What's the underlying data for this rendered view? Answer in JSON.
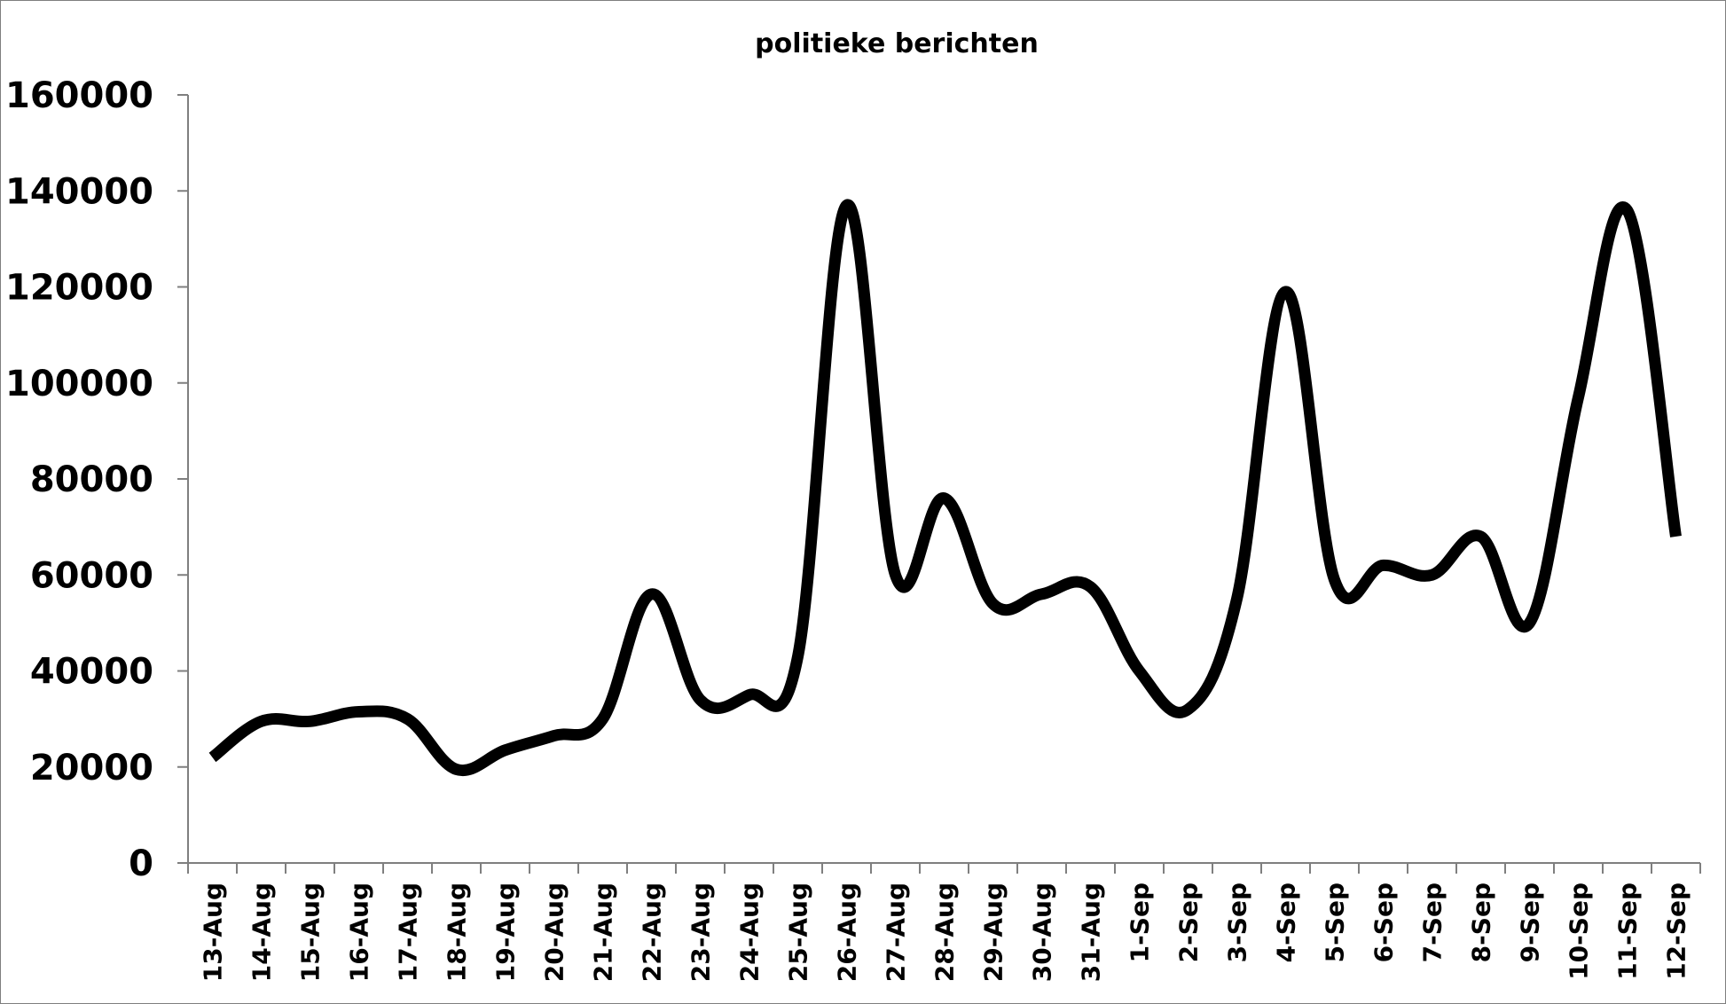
{
  "chart_data": {
    "type": "line",
    "title": "politieke berichten",
    "xlabel": "",
    "ylabel": "",
    "ylim": [
      0,
      160000
    ],
    "yticks": [
      "0",
      "20000",
      "40000",
      "60000",
      "80000",
      "100000",
      "120000",
      "140000",
      "160000"
    ],
    "categories": [
      "13-Aug",
      "14-Aug",
      "15-Aug",
      "16-Aug",
      "17-Aug",
      "18-Aug",
      "19-Aug",
      "20-Aug",
      "21-Aug",
      "22-Aug",
      "23-Aug",
      "24-Aug",
      "25-Aug",
      "26-Aug",
      "27-Aug",
      "28-Aug",
      "29-Aug",
      "30-Aug",
      "31-Aug",
      "1-Sep",
      "2-Sep",
      "3-Sep",
      "4-Sep",
      "5-Sep",
      "6-Sep",
      "7-Sep",
      "8-Sep",
      "9-Sep",
      "10-Sep",
      "11-Sep",
      "12-Sep"
    ],
    "series": [
      {
        "values": [
          22000,
          29500,
          29500,
          31500,
          30000,
          19500,
          23500,
          26500,
          30000,
          56000,
          34000,
          35000,
          43000,
          137000,
          60000,
          76000,
          54000,
          56000,
          57500,
          40000,
          32000,
          55000,
          119000,
          59000,
          62000,
          60000,
          68000,
          50000,
          97000,
          136000,
          68000
        ],
        "color": "#000000"
      }
    ],
    "grid": false,
    "legend": "none",
    "smooth": true
  }
}
